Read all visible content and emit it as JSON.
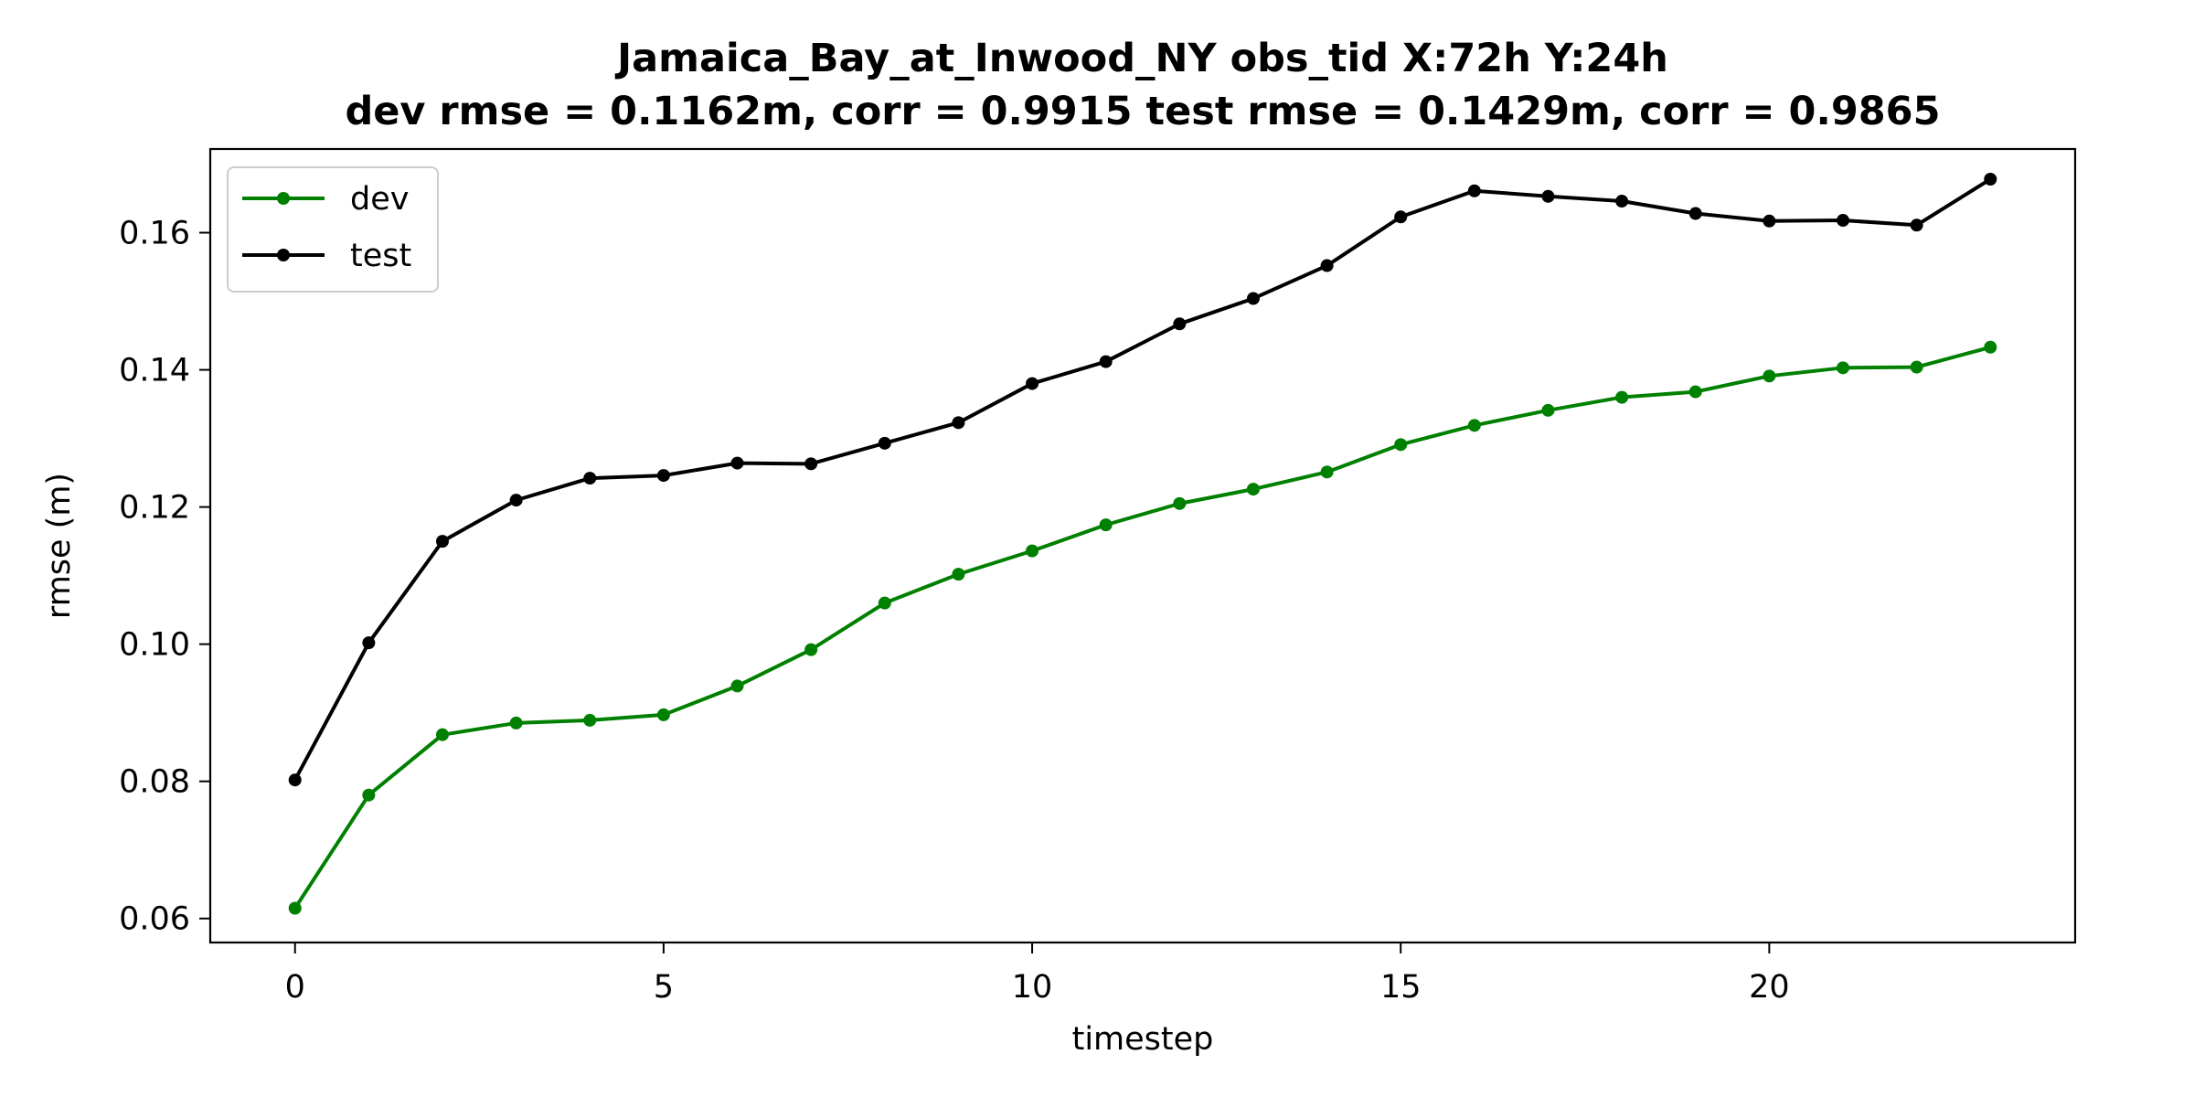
{
  "chart_data": {
    "type": "line",
    "title_line1": "Jamaica_Bay_at_Inwood_NY   obs_tid   X:72h   Y:24h",
    "title_line2": "dev rmse = 0.1162m, corr = 0.9915   test rmse = 0.1429m, corr = 0.9865",
    "xlabel": "timestep",
    "ylabel": "rmse (m)",
    "xlim": [
      -1.15,
      24.15
    ],
    "ylim": [
      0.0565,
      0.1722
    ],
    "xticks": [
      0,
      5,
      10,
      15,
      20
    ],
    "xtick_labels": [
      "0",
      "5",
      "10",
      "15",
      "20"
    ],
    "yticks": [
      0.06,
      0.08,
      0.1,
      0.12,
      0.14,
      0.16
    ],
    "ytick_labels": [
      "0.06",
      "0.08",
      "0.10",
      "0.12",
      "0.14",
      "0.16"
    ],
    "grid": false,
    "legend_position": "upper-left",
    "x": [
      0,
      1,
      2,
      3,
      4,
      5,
      6,
      7,
      8,
      9,
      10,
      11,
      12,
      13,
      14,
      15,
      16,
      17,
      18,
      19,
      20,
      21,
      22,
      23
    ],
    "series": [
      {
        "name": "dev",
        "color": "#008000",
        "values": [
          0.0615,
          0.078,
          0.0868,
          0.0885,
          0.0889,
          0.0897,
          0.0939,
          0.0992,
          0.106,
          0.1102,
          0.1136,
          0.1174,
          0.1205,
          0.1226,
          0.1251,
          0.1291,
          0.1319,
          0.1341,
          0.136,
          0.1368,
          0.1391,
          0.1403,
          0.1404,
          0.1433
        ]
      },
      {
        "name": "test",
        "color": "#000000",
        "values": [
          0.0802,
          0.1002,
          0.115,
          0.121,
          0.1242,
          0.1246,
          0.1264,
          0.1263,
          0.1293,
          0.1323,
          0.138,
          0.1412,
          0.1467,
          0.1504,
          0.1552,
          0.1623,
          0.1661,
          0.1653,
          0.1646,
          0.1628,
          0.1617,
          0.1618,
          0.1611,
          0.1678
        ]
      }
    ]
  }
}
